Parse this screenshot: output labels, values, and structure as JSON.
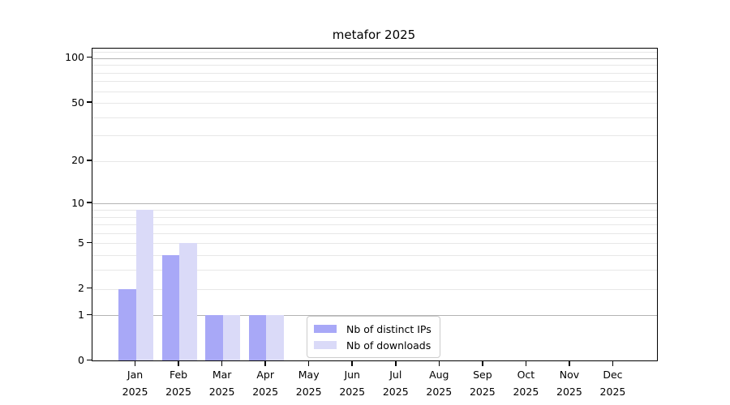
{
  "chart_data": {
    "type": "bar",
    "title": "metafor 2025",
    "categories": [
      "Jan",
      "Feb",
      "Mar",
      "Apr",
      "May",
      "Jun",
      "Jul",
      "Aug",
      "Sep",
      "Oct",
      "Nov",
      "Dec"
    ],
    "category_year": "2025",
    "series": [
      {
        "name": "Nb of distinct IPs",
        "color": "#a8a8f7",
        "values": [
          2,
          4,
          1,
          1,
          0,
          0,
          0,
          0,
          0,
          0,
          0,
          0
        ]
      },
      {
        "name": "Nb of downloads",
        "color": "#dadaf8",
        "values": [
          9,
          5,
          1,
          1,
          0,
          0,
          0,
          0,
          0,
          0,
          0,
          0
        ]
      }
    ],
    "yscale": "log1p",
    "ylim": [
      0,
      115
    ],
    "yticks": [
      0,
      1,
      2,
      5,
      10,
      20,
      50,
      100
    ],
    "ytick_labels": [
      "0",
      "1",
      "2",
      "5",
      "10",
      "20",
      "50",
      "100"
    ],
    "grid": {
      "on": true,
      "major_lines_at": [
        1,
        10,
        100
      ],
      "minor_lines_at": [
        2,
        3,
        4,
        5,
        6,
        7,
        8,
        9,
        20,
        30,
        40,
        50,
        60,
        70,
        80,
        90,
        110
      ]
    },
    "legend": {
      "position": "lower center"
    },
    "colors": {
      "major_grid": "#b3b3b3",
      "minor_grid": "#e7e7e7",
      "spine": "#000000",
      "background": "#ffffff"
    }
  }
}
